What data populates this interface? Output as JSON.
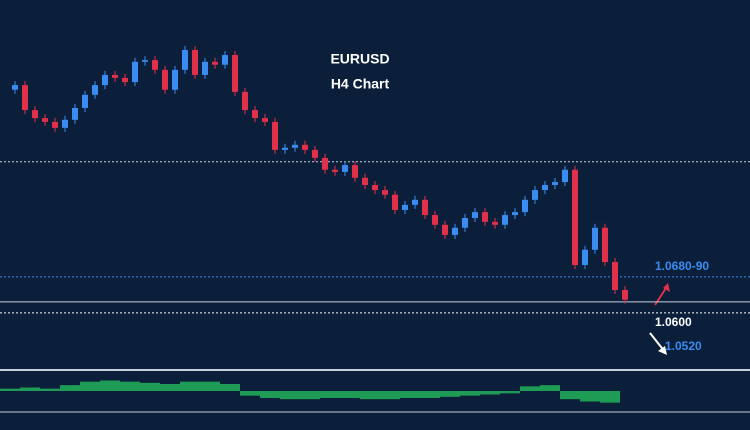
{
  "chart_data": {
    "type": "candlestick",
    "title": "EURUSD",
    "subtitle": "H4 Chart",
    "ylim": [
      1.0465,
      1.1339
    ],
    "up_color": "#3a8cf0",
    "down_color": "#e0304a",
    "close": [
      1.1127,
      1.1138,
      1.1079,
      1.106,
      1.1051,
      1.1037,
      1.1056,
      1.1084,
      1.1115,
      1.1138,
      1.1162,
      1.1155,
      1.1145,
      1.1193,
      1.1197,
      1.1174,
      1.1127,
      1.1174,
      1.1221,
      1.1162,
      1.1193,
      1.1186,
      1.1209,
      1.1122,
      1.1079,
      1.106,
      1.1051,
      1.0985,
      1.099,
      1.0997,
      1.0985,
      1.0966,
      1.0938,
      1.0933,
      1.0949,
      1.0919,
      1.0902,
      1.089,
      1.0879,
      1.0843,
      1.0855,
      1.0867,
      1.0831,
      1.0808,
      1.0784,
      1.0801,
      1.0824,
      1.0838,
      1.0815,
      1.0808,
      1.0831,
      1.0838,
      1.0867,
      1.089,
      1.0902,
      1.0909,
      1.0938,
      1.0713,
      1.0749,
      1.0801,
      1.072,
      1.0654,
      1.0631
    ],
    "levels": [
      {
        "value": 1.0957,
        "color": "#c8d0dc",
        "style": "dotted"
      },
      {
        "value": 1.0685,
        "label": "1.0680-90",
        "color": "#3a8cf0",
        "style": "dotted"
      },
      {
        "value": 1.0626,
        "color": "#c8d0dc",
        "style": "solid"
      },
      {
        "value": 1.06,
        "label": "1.0600",
        "color": "#ffffff",
        "style": "dotted"
      },
      {
        "value": 1.052,
        "label": "1.0520",
        "color": "#3a8cf0",
        "style": "none"
      }
    ],
    "indicator": {
      "ylim": [
        -12,
        12
      ],
      "color": "#22b35a",
      "values": [
        2,
        3,
        2,
        5,
        8,
        9,
        8,
        7,
        6,
        8,
        8,
        6,
        -4,
        -6,
        -7,
        -7,
        -6,
        -6,
        -7,
        -7,
        -6,
        -6,
        -5,
        -4,
        -3,
        -2,
        4,
        5,
        -7,
        -9,
        -10
      ]
    }
  }
}
